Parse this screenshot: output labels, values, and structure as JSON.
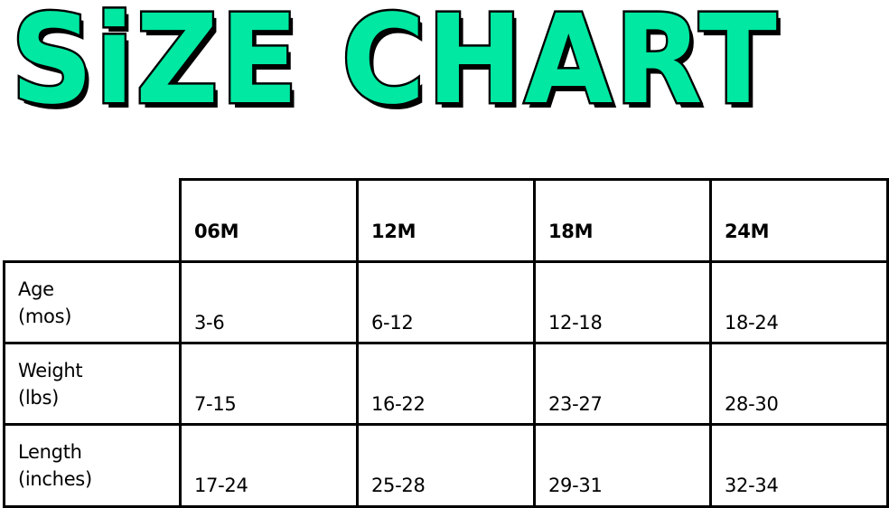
{
  "title": "SiZE CHART",
  "accent_color": "#00E8A2",
  "table": {
    "columns": [
      "06M",
      "12M",
      "18M",
      "24M"
    ],
    "rows": [
      {
        "label_line1": "Age",
        "label_line2": "(mos)",
        "values": [
          "3-6",
          "6-12",
          "12-18",
          "18-24"
        ]
      },
      {
        "label_line1": "Weight",
        "label_line2": "(lbs)",
        "values": [
          "7-15",
          "16-22",
          "23-27",
          "28-30"
        ]
      },
      {
        "label_line1": "Length",
        "label_line2": "(inches)",
        "values": [
          "17-24",
          "25-28",
          "29-31",
          "32-34"
        ]
      }
    ]
  }
}
